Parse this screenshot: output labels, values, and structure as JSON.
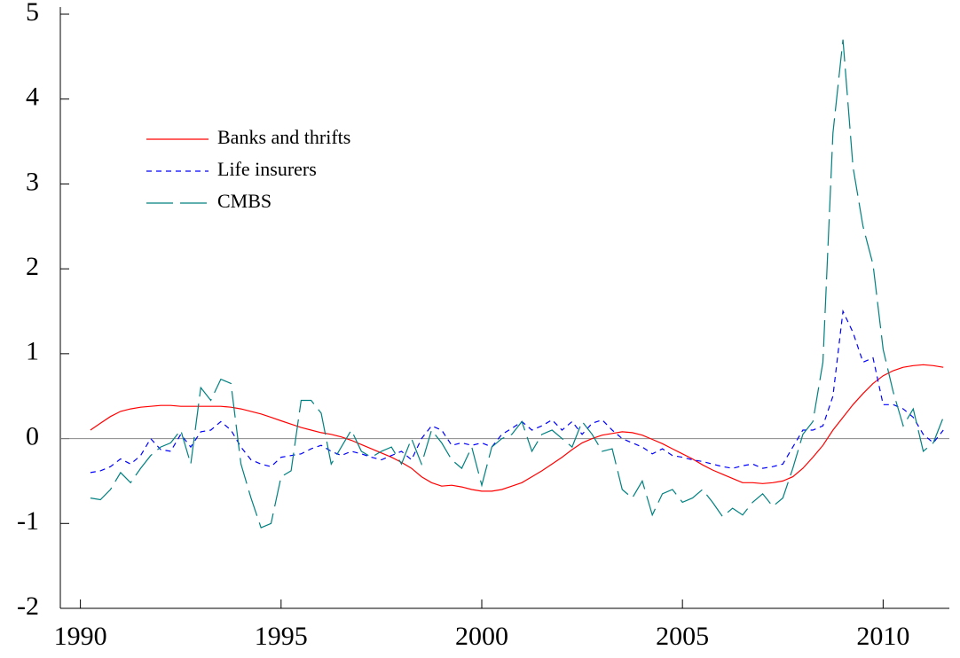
{
  "chart_data": {
    "type": "line",
    "x": [
      1990.25,
      1990.5,
      1990.75,
      1991,
      1991.25,
      1991.5,
      1991.75,
      1992,
      1992.25,
      1992.5,
      1992.75,
      1993,
      1993.25,
      1993.5,
      1993.75,
      1994,
      1994.25,
      1994.5,
      1994.75,
      1995,
      1995.25,
      1995.5,
      1995.75,
      1996,
      1996.25,
      1996.5,
      1996.75,
      1997,
      1997.25,
      1997.5,
      1997.75,
      1998,
      1998.25,
      1998.5,
      1998.75,
      1999,
      1999.25,
      1999.5,
      1999.75,
      2000,
      2000.25,
      2000.5,
      2000.75,
      2001,
      2001.25,
      2001.5,
      2001.75,
      2002,
      2002.25,
      2002.5,
      2002.75,
      2003,
      2003.25,
      2003.5,
      2003.75,
      2004,
      2004.25,
      2004.5,
      2004.75,
      2005,
      2005.25,
      2005.5,
      2005.75,
      2006,
      2006.25,
      2006.5,
      2006.75,
      2007,
      2007.25,
      2007.5,
      2007.75,
      2008,
      2008.25,
      2008.5,
      2008.75,
      2009,
      2009.25,
      2009.5,
      2009.75,
      2010,
      2010.25,
      2010.5,
      2010.75,
      2011,
      2011.25,
      2011.5
    ],
    "series": [
      {
        "name": "Banks and thrifts",
        "color": "#ff0000",
        "dash": "none",
        "values": [
          0.1,
          0.18,
          0.26,
          0.32,
          0.35,
          0.37,
          0.38,
          0.39,
          0.39,
          0.38,
          0.38,
          0.38,
          0.38,
          0.38,
          0.37,
          0.35,
          0.32,
          0.29,
          0.25,
          0.21,
          0.17,
          0.13,
          0.1,
          0.07,
          0.05,
          0.02,
          -0.02,
          -0.07,
          -0.12,
          -0.17,
          -0.22,
          -0.28,
          -0.35,
          -0.45,
          -0.52,
          -0.56,
          -0.55,
          -0.57,
          -0.6,
          -0.62,
          -0.62,
          -0.6,
          -0.56,
          -0.52,
          -0.45,
          -0.38,
          -0.3,
          -0.22,
          -0.13,
          -0.05,
          0.0,
          0.04,
          0.06,
          0.08,
          0.07,
          0.04,
          -0.01,
          -0.06,
          -0.12,
          -0.18,
          -0.24,
          -0.31,
          -0.37,
          -0.42,
          -0.47,
          -0.52,
          -0.52,
          -0.53,
          -0.52,
          -0.5,
          -0.45,
          -0.35,
          -0.22,
          -0.08,
          0.1,
          0.25,
          0.4,
          0.53,
          0.65,
          0.74,
          0.8,
          0.84,
          0.86,
          0.87,
          0.86,
          0.84
        ]
      },
      {
        "name": "Life insurers",
        "color": "#0000ff",
        "dash": "6,5",
        "values": [
          -0.4,
          -0.38,
          -0.33,
          -0.24,
          -0.3,
          -0.2,
          0.0,
          -0.13,
          -0.15,
          0.05,
          -0.1,
          0.08,
          0.1,
          0.2,
          0.1,
          -0.1,
          -0.25,
          -0.3,
          -0.33,
          -0.22,
          -0.2,
          -0.18,
          -0.12,
          -0.08,
          -0.15,
          -0.2,
          -0.15,
          -0.18,
          -0.22,
          -0.25,
          -0.2,
          -0.15,
          -0.25,
          0.0,
          0.15,
          0.1,
          -0.08,
          -0.05,
          -0.08,
          -0.05,
          -0.1,
          0.05,
          0.12,
          0.2,
          0.1,
          0.15,
          0.22,
          0.1,
          0.2,
          0.05,
          0.18,
          0.22,
          0.1,
          0.0,
          -0.05,
          -0.1,
          -0.18,
          -0.12,
          -0.2,
          -0.22,
          -0.25,
          -0.27,
          -0.3,
          -0.33,
          -0.35,
          -0.32,
          -0.3,
          -0.35,
          -0.33,
          -0.3,
          -0.1,
          0.1,
          0.1,
          0.15,
          0.5,
          1.5,
          1.25,
          0.9,
          0.95,
          0.4,
          0.4,
          0.35,
          0.25,
          0.05,
          -0.05,
          0.1
        ]
      },
      {
        "name": "CMBS",
        "color": "#008080",
        "dash": "30,8",
        "values": [
          -0.7,
          -0.72,
          -0.6,
          -0.4,
          -0.52,
          -0.35,
          -0.2,
          -0.1,
          -0.05,
          0.1,
          -0.3,
          0.6,
          0.45,
          0.7,
          0.65,
          -0.3,
          -0.7,
          -1.05,
          -1.0,
          -0.45,
          -0.38,
          0.45,
          0.45,
          0.3,
          -0.3,
          -0.1,
          0.1,
          -0.15,
          -0.22,
          -0.15,
          -0.1,
          -0.3,
          0.0,
          -0.3,
          0.1,
          -0.05,
          -0.25,
          -0.35,
          -0.1,
          -0.55,
          -0.1,
          0.0,
          0.05,
          0.2,
          -0.15,
          0.05,
          0.1,
          0.0,
          -0.1,
          0.2,
          0.05,
          -0.15,
          -0.12,
          -0.6,
          -0.7,
          -0.5,
          -0.9,
          -0.65,
          -0.6,
          -0.75,
          -0.7,
          -0.6,
          -0.75,
          -0.92,
          -0.82,
          -0.9,
          -0.75,
          -0.65,
          -0.8,
          -0.7,
          -0.35,
          0.05,
          0.2,
          0.9,
          3.6,
          4.7,
          3.2,
          2.5,
          2.05,
          1.05,
          0.55,
          0.15,
          0.35,
          -0.15,
          -0.05,
          0.25
        ]
      }
    ],
    "xlim": [
      1989.5,
      2011.65
    ],
    "ylim": [
      -2,
      5
    ],
    "xticks": [
      1990,
      1995,
      2000,
      2005,
      2010
    ],
    "yticks": [
      -2,
      -1,
      0,
      1,
      2,
      3,
      4,
      5
    ],
    "reference_line": 0,
    "legend": "upper left"
  }
}
